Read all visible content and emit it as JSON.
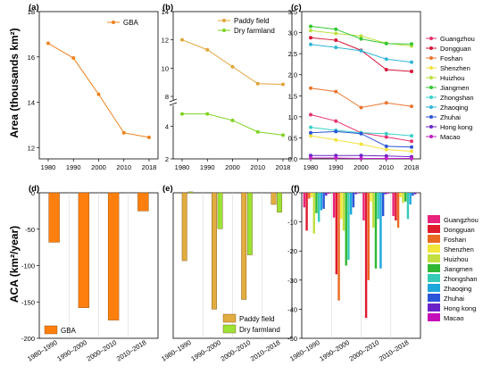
{
  "figure": {
    "top_ylabel": "Area (thousands km²)",
    "bottom_ylabel": "ACA (km²/year)"
  },
  "colors": {
    "gba": "#f0831f",
    "paddy": "#e0a53a",
    "dry": "#7ed321",
    "gba_bar": "#ff7f0e",
    "paddy_bar": "#e2ac3f",
    "dry_bar": "#9be334"
  },
  "chart_data": [
    {
      "id": "a",
      "panel_label": "(a)",
      "type": "line",
      "x": [
        "1980",
        "1990",
        "2000",
        "2010",
        "2018"
      ],
      "ylim": [
        11.5,
        18
      ],
      "yticks": [
        "12",
        "14",
        "16",
        "18"
      ],
      "series": [
        {
          "name": "GBA",
          "values": [
            16.6,
            15.95,
            14.35,
            12.65,
            12.45
          ],
          "color": "#f0831f"
        }
      ],
      "legend": "top-right"
    },
    {
      "id": "b",
      "panel_label": "(b)",
      "type": "line",
      "x": [
        "1980",
        "1990",
        "2000",
        "2010",
        "2018"
      ],
      "ylim": [
        2,
        14
      ],
      "axis_break": [
        5,
        8
      ],
      "yticks": [
        "2",
        "4",
        "8",
        "10",
        "12",
        "14"
      ],
      "series": [
        {
          "name": "Paddy field",
          "values": [
            12.0,
            11.3,
            10.1,
            8.9,
            8.85
          ],
          "color": "#e0a53a"
        },
        {
          "name": "Dry farmland",
          "values": [
            4.75,
            4.75,
            4.35,
            3.65,
            3.45
          ],
          "color": "#7ed321"
        }
      ],
      "legend": "top-right"
    },
    {
      "id": "c",
      "panel_label": "(c)",
      "type": "line",
      "x": [
        "1980",
        "1990",
        "2000",
        "2010",
        "2018"
      ],
      "ylim": [
        0,
        3.5
      ],
      "yticks": [
        "0.0",
        "0.5",
        "1.0",
        "1.5",
        "2.0",
        "2.5",
        "3.0",
        "3.5"
      ],
      "series": [
        {
          "name": "Guangzhou",
          "values": [
            1.05,
            0.9,
            0.62,
            0.52,
            0.42
          ],
          "color": "#e6326e"
        },
        {
          "name": "Dongguan",
          "values": [
            2.88,
            2.82,
            2.58,
            2.12,
            2.08
          ],
          "color": "#d7163c"
        },
        {
          "name": "Foshan",
          "values": [
            1.68,
            1.6,
            1.22,
            1.33,
            1.25
          ],
          "color": "#e8752f"
        },
        {
          "name": "Shenzhen",
          "values": [
            0.55,
            0.45,
            0.35,
            0.22,
            0.18
          ],
          "color": "#f2e33a"
        },
        {
          "name": "Huizhou",
          "values": [
            3.05,
            2.98,
            2.92,
            2.75,
            2.68
          ],
          "color": "#bde040"
        },
        {
          "name": "Jiangmen",
          "values": [
            3.15,
            3.08,
            2.85,
            2.74,
            2.73
          ],
          "color": "#34c734"
        },
        {
          "name": "Zhongshan",
          "values": [
            0.75,
            0.68,
            0.62,
            0.6,
            0.55
          ],
          "color": "#3ad1c9"
        },
        {
          "name": "Zhaoqing",
          "values": [
            2.72,
            2.65,
            2.57,
            2.37,
            2.3
          ],
          "color": "#2fb6d6"
        },
        {
          "name": "Zhuhai",
          "values": [
            0.62,
            0.65,
            0.6,
            0.3,
            0.28
          ],
          "color": "#2e54d6"
        },
        {
          "name": "Hong kong",
          "values": [
            0.08,
            0.08,
            0.08,
            0.07,
            0.05
          ],
          "color": "#6a25c9"
        },
        {
          "name": "Macao",
          "values": [
            0.02,
            0.02,
            0.01,
            0.01,
            0.01
          ],
          "color": "#c21ec2"
        }
      ],
      "legend": "right"
    },
    {
      "id": "d",
      "panel_label": "(d)",
      "type": "bar",
      "categories": [
        "1980–1990",
        "1990–2000",
        "2000–2010",
        "2010–2018"
      ],
      "ylim": [
        -200,
        0
      ],
      "yticks": [
        "-200",
        "-150",
        "-100",
        "-50",
        "0"
      ],
      "series": [
        {
          "name": "GBA",
          "values": [
            -68,
            -158,
            -175,
            -25
          ],
          "color": "#ff7f0e"
        }
      ],
      "legend": "bottom-left"
    },
    {
      "id": "e",
      "panel_label": "(e)",
      "type": "bar",
      "categories": [
        "1980–1990",
        "1990–2000",
        "2000–2010",
        "2010–2018"
      ],
      "ylim": [
        -150,
        0
      ],
      "yticks": [],
      "series": [
        {
          "name": "Paddy field",
          "values": [
            -70,
            -120,
            -110,
            -12
          ],
          "color": "#e2ac3f"
        },
        {
          "name": "Dry farmland",
          "values": [
            1,
            -37,
            -64,
            -20
          ],
          "color": "#9be334"
        }
      ],
      "legend": "bottom-right"
    },
    {
      "id": "f",
      "panel_label": "(f)",
      "type": "bar",
      "categories": [
        "1980–1990",
        "1990–2000",
        "2000–2010",
        "2010–2018"
      ],
      "ylim": [
        -50,
        0
      ],
      "yticks": [
        "-50",
        "-40",
        "-30",
        "-20",
        "-10",
        "0"
      ],
      "series": [
        {
          "name": "Guangzhou",
          "values": [
            -5,
            -8.5,
            -9.5,
            -8
          ],
          "color": "#e8237c"
        },
        {
          "name": "Dongguan",
          "values": [
            -13,
            -28,
            -43,
            -9.5
          ],
          "color": "#e01a2d"
        },
        {
          "name": "Foshan",
          "values": [
            -2,
            -37,
            -30,
            -12
          ],
          "color": "#e96a22"
        },
        {
          "name": "Shenzhen",
          "values": [
            -1.5,
            -9,
            -3,
            -1.5
          ],
          "color": "#f3e63b"
        },
        {
          "name": "Huizhou",
          "values": [
            -14,
            -13,
            -12,
            -3.5
          ],
          "color": "#c1df3e"
        },
        {
          "name": "Jiangmen",
          "values": [
            -7,
            -25,
            -26,
            -3
          ],
          "color": "#30b834"
        },
        {
          "name": "Zhongshan",
          "values": [
            -10,
            -23,
            -9,
            -9
          ],
          "color": "#35cbb6"
        },
        {
          "name": "Zhaoqing",
          "values": [
            -6,
            -7.5,
            -26,
            -4
          ],
          "color": "#1fa7dc"
        },
        {
          "name": "Zhuhai",
          "values": [
            -5.5,
            -5,
            -8,
            -1
          ],
          "color": "#2a55d8"
        },
        {
          "name": "Hong kong",
          "values": [
            -1,
            -0.5,
            -0.5,
            -0.5
          ],
          "color": "#6a22c8"
        },
        {
          "name": "Macao",
          "values": [
            -0.3,
            -0.2,
            -0.3,
            -0.1
          ],
          "color": "#c40fb8"
        }
      ],
      "legend": "right"
    }
  ]
}
